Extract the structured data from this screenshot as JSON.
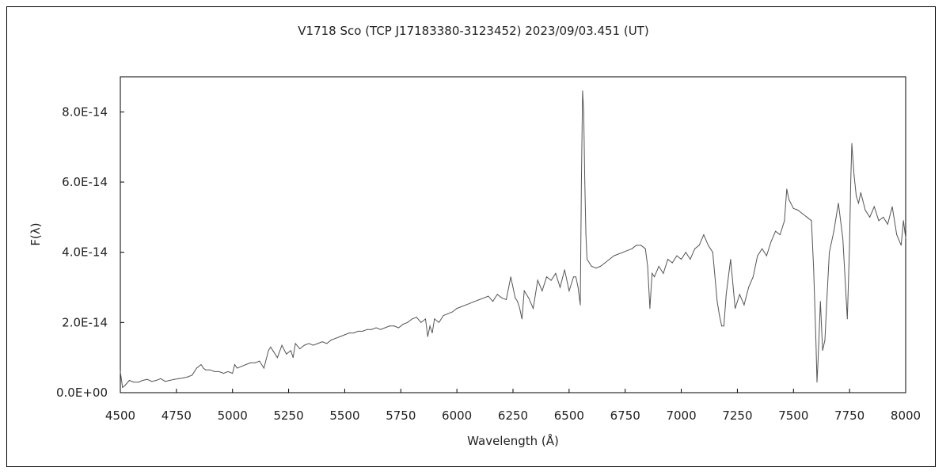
{
  "chart_data": {
    "type": "line",
    "title": "V1718 Sco (TCP J17183380-3123452)   2023/09/03.451 (UT)",
    "xlabel": "Wavelength (Å)",
    "ylabel": "F(λ)",
    "xlim": [
      4500,
      8000
    ],
    "ylim": [
      0,
      9e-14
    ],
    "x_ticks": [
      4500,
      4750,
      5000,
      5250,
      5500,
      5750,
      6000,
      6250,
      6500,
      6750,
      7000,
      7250,
      7500,
      7750,
      8000
    ],
    "x_tick_labels": [
      "4500",
      "4750",
      "5000",
      "5250",
      "5500",
      "5750",
      "6000",
      "6250",
      "6500",
      "6750",
      "7000",
      "7250",
      "7500",
      "7750",
      "8000"
    ],
    "y_ticks": [
      0,
      2e-14,
      4e-14,
      6e-14,
      8e-14
    ],
    "y_tick_labels": [
      "0.0E+00",
      "2.0E-14",
      "4.0E-14",
      "6.0E-14",
      "8.0E-14"
    ],
    "grid": false,
    "legend": "none",
    "line_color": "#555555",
    "series": [
      {
        "x": [
          4500,
          4510,
          4520,
          4540,
          4560,
          4580,
          4600,
          4620,
          4640,
          4660,
          4680,
          4700,
          4720,
          4740,
          4760,
          4780,
          4800,
          4820,
          4840,
          4860,
          4870,
          4880,
          4900,
          4920,
          4940,
          4960,
          4980,
          5000,
          5010,
          5020,
          5040,
          5060,
          5080,
          5100,
          5120,
          5140,
          5160,
          5170,
          5180,
          5200,
          5220,
          5240,
          5260,
          5270,
          5280,
          5300,
          5320,
          5340,
          5360,
          5380,
          5400,
          5420,
          5440,
          5460,
          5480,
          5500,
          5520,
          5540,
          5560,
          5580,
          5600,
          5620,
          5640,
          5660,
          5680,
          5700,
          5720,
          5740,
          5760,
          5780,
          5800,
          5820,
          5840,
          5860,
          5870,
          5880,
          5890,
          5900,
          5920,
          5940,
          5960,
          5980,
          6000,
          6020,
          6040,
          6060,
          6080,
          6100,
          6120,
          6140,
          6160,
          6180,
          6200,
          6220,
          6240,
          6250,
          6260,
          6270,
          6280,
          6290,
          6300,
          6320,
          6340,
          6360,
          6380,
          6400,
          6420,
          6440,
          6460,
          6480,
          6500,
          6520,
          6530,
          6540,
          6550,
          6555,
          6560,
          6565,
          6570,
          6575,
          6580,
          6590,
          6600,
          6620,
          6640,
          6660,
          6680,
          6700,
          6720,
          6740,
          6760,
          6780,
          6800,
          6820,
          6840,
          6850,
          6860,
          6870,
          6880,
          6900,
          6920,
          6940,
          6960,
          6980,
          7000,
          7020,
          7040,
          7060,
          7080,
          7100,
          7120,
          7140,
          7160,
          7170,
          7180,
          7190,
          7200,
          7220,
          7240,
          7260,
          7280,
          7300,
          7320,
          7340,
          7360,
          7380,
          7400,
          7420,
          7440,
          7460,
          7470,
          7480,
          7500,
          7520,
          7540,
          7560,
          7580,
          7590,
          7600,
          7605,
          7610,
          7620,
          7630,
          7640,
          7650,
          7660,
          7680,
          7700,
          7720,
          7740,
          7750,
          7755,
          7760,
          7770,
          7780,
          7790,
          7800,
          7820,
          7840,
          7860,
          7880,
          7900,
          7920,
          7940,
          7960,
          7980,
          7990,
          8000
        ],
        "y": [
          6e-15,
          1.5e-15,
          2e-15,
          3.5e-15,
          3e-15,
          3e-15,
          3.5e-15,
          3.8e-15,
          3.2e-15,
          3.5e-15,
          4e-15,
          3.2e-15,
          3.5e-15,
          3.8e-15,
          4e-15,
          4.2e-15,
          4.5e-15,
          5e-15,
          7e-15,
          8e-15,
          7e-15,
          6.5e-15,
          6.5e-15,
          6e-15,
          6e-15,
          5.5e-15,
          6e-15,
          5.5e-15,
          8e-15,
          7e-15,
          7.5e-15,
          8e-15,
          8.5e-15,
          8.5e-15,
          9e-15,
          7e-15,
          1.2e-14,
          1.3e-14,
          1.2e-14,
          1e-14,
          1.35e-14,
          1.1e-14,
          1.2e-14,
          1e-14,
          1.4e-14,
          1.25e-14,
          1.35e-14,
          1.4e-14,
          1.35e-14,
          1.4e-14,
          1.45e-14,
          1.4e-14,
          1.5e-14,
          1.55e-14,
          1.6e-14,
          1.65e-14,
          1.7e-14,
          1.7e-14,
          1.75e-14,
          1.75e-14,
          1.8e-14,
          1.8e-14,
          1.85e-14,
          1.8e-14,
          1.85e-14,
          1.9e-14,
          1.9e-14,
          1.85e-14,
          1.95e-14,
          2e-14,
          2.1e-14,
          2.15e-14,
          2e-14,
          2.1e-14,
          1.6e-14,
          1.9e-14,
          1.7e-14,
          2.1e-14,
          2e-14,
          2.2e-14,
          2.25e-14,
          2.3e-14,
          2.4e-14,
          2.45e-14,
          2.5e-14,
          2.55e-14,
          2.6e-14,
          2.65e-14,
          2.7e-14,
          2.75e-14,
          2.6e-14,
          2.8e-14,
          2.7e-14,
          2.65e-14,
          3.3e-14,
          3e-14,
          2.7e-14,
          2.6e-14,
          2.4e-14,
          2.1e-14,
          2.9e-14,
          2.7e-14,
          2.4e-14,
          3.2e-14,
          2.9e-14,
          3.3e-14,
          3.2e-14,
          3.4e-14,
          3e-14,
          3.5e-14,
          2.9e-14,
          3.3e-14,
          3.3e-14,
          3e-14,
          2.5e-14,
          6e-14,
          8.6e-14,
          8e-14,
          6e-14,
          4.5e-14,
          3.8e-14,
          3.7e-14,
          3.6e-14,
          3.55e-14,
          3.6e-14,
          3.7e-14,
          3.8e-14,
          3.9e-14,
          3.95e-14,
          4e-14,
          4.05e-14,
          4.1e-14,
          4.2e-14,
          4.2e-14,
          4.1e-14,
          3.6e-14,
          2.4e-14,
          3.4e-14,
          3.3e-14,
          3.6e-14,
          3.4e-14,
          3.8e-14,
          3.7e-14,
          3.9e-14,
          3.8e-14,
          4e-14,
          3.8e-14,
          4.1e-14,
          4.2e-14,
          4.5e-14,
          4.2e-14,
          4e-14,
          2.6e-14,
          2.2e-14,
          1.9e-14,
          1.9e-14,
          2.8e-14,
          3.8e-14,
          2.4e-14,
          2.8e-14,
          2.5e-14,
          3e-14,
          3.3e-14,
          3.9e-14,
          4.1e-14,
          3.9e-14,
          4.3e-14,
          4.6e-14,
          4.5e-14,
          4.9e-14,
          5.8e-14,
          5.5e-14,
          5.25e-14,
          5.2e-14,
          5.1e-14,
          5e-14,
          4.9e-14,
          3.5e-14,
          1.5e-14,
          3e-15,
          1e-14,
          2.6e-14,
          1.2e-14,
          1.5e-14,
          2.8e-14,
          4e-14,
          4.6e-14,
          5.4e-14,
          4.4e-14,
          2.1e-14,
          4.2e-14,
          6e-14,
          7.1e-14,
          6.2e-14,
          5.6e-14,
          5.4e-14,
          5.7e-14,
          5.2e-14,
          5e-14,
          5.3e-14,
          4.9e-14,
          5e-14,
          4.8e-14,
          5.3e-14,
          4.5e-14,
          4.2e-14,
          4.9e-14,
          4.4e-14
        ]
      }
    ]
  }
}
